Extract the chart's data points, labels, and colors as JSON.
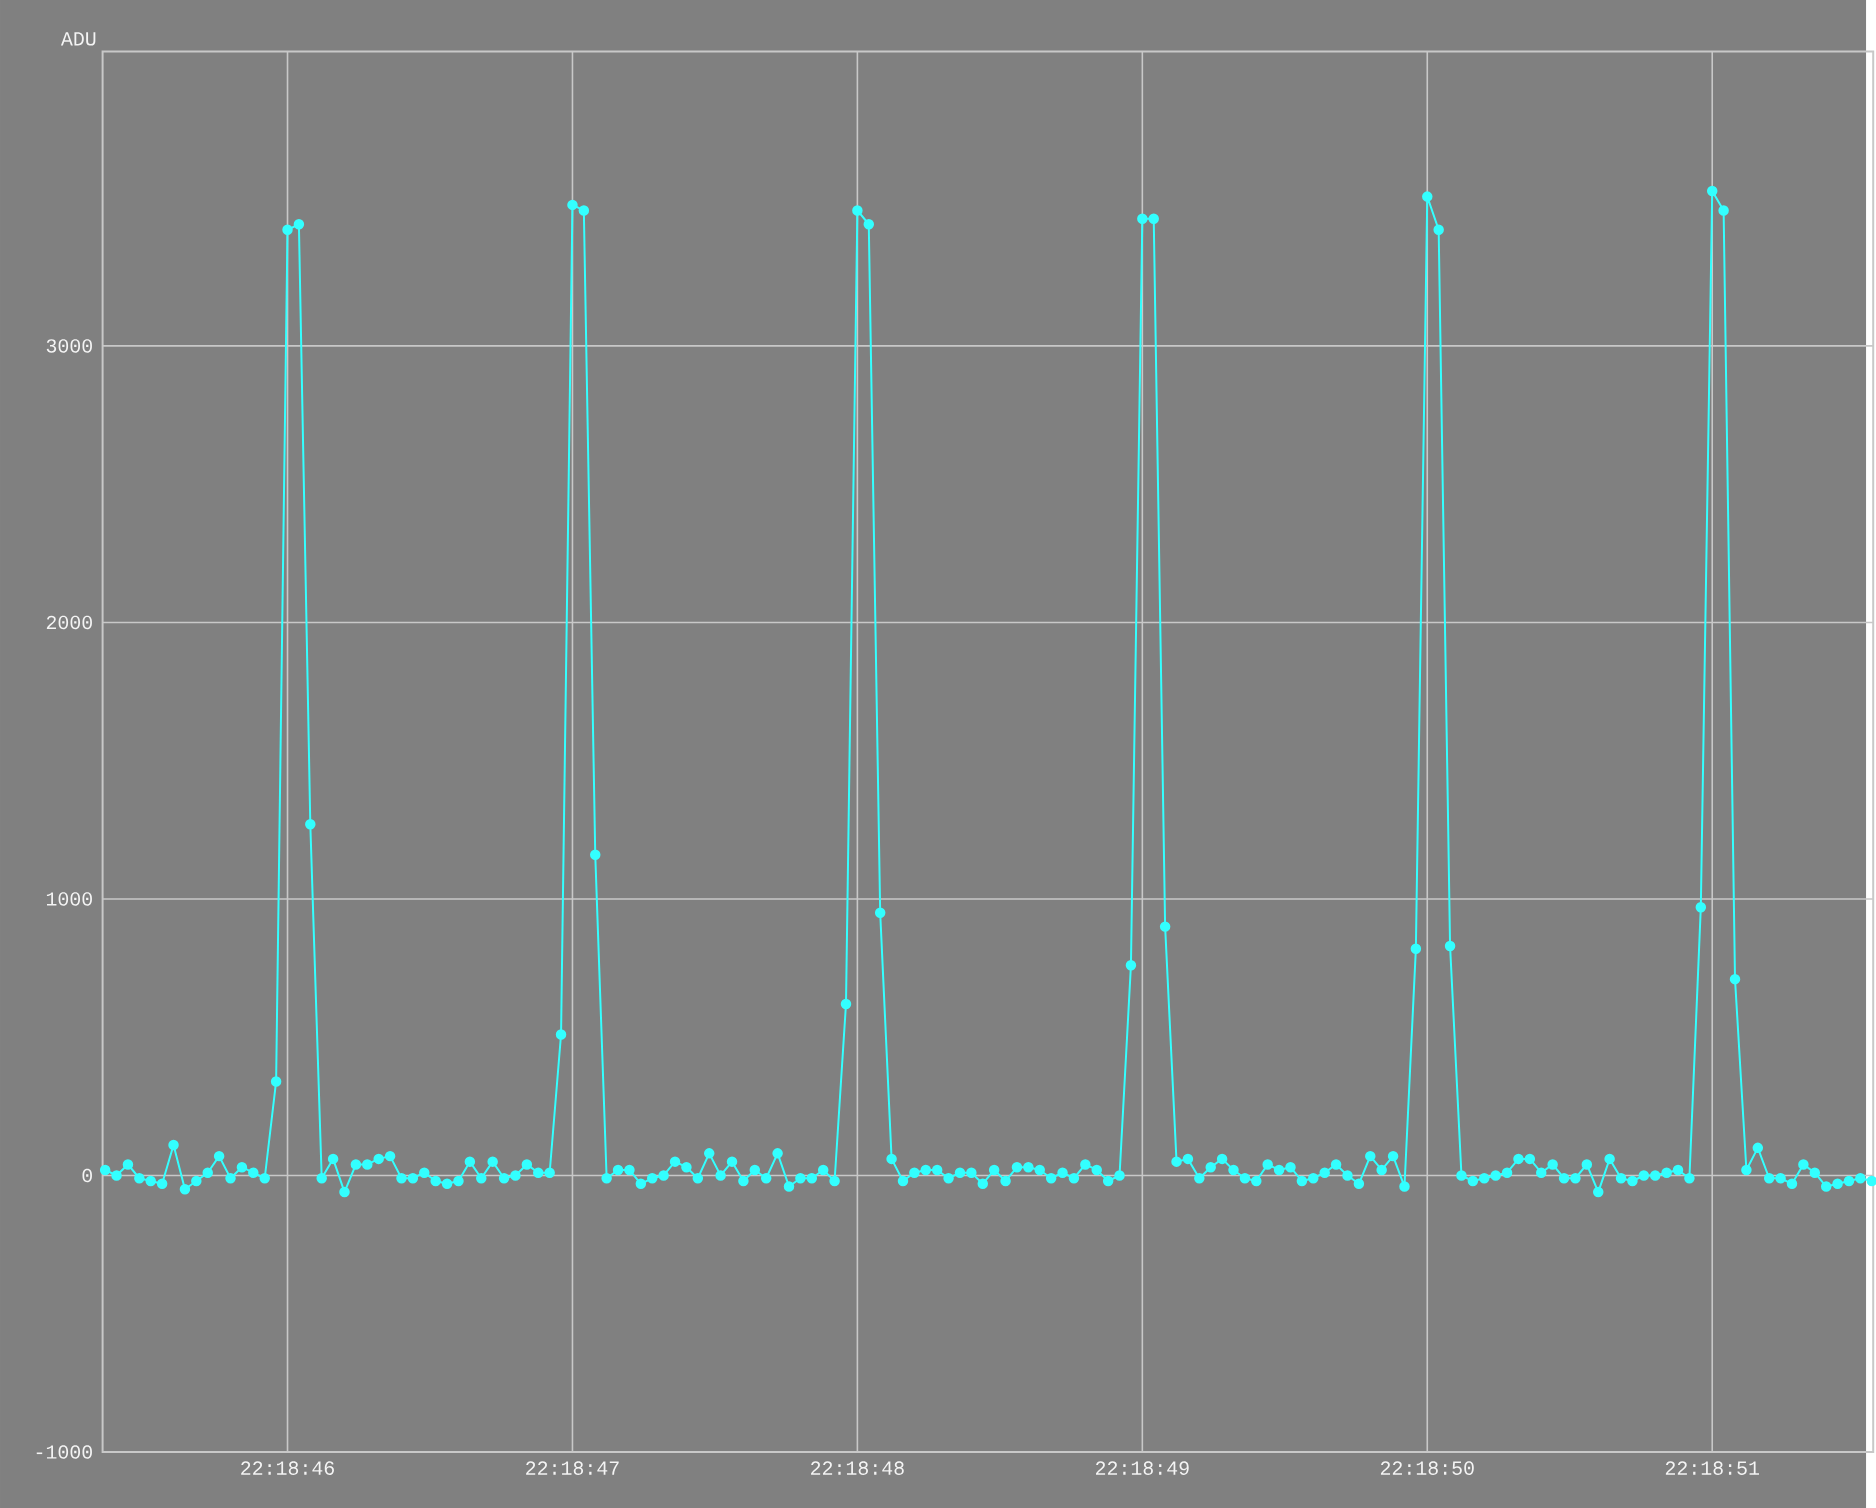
{
  "chart_data": {
    "type": "line",
    "ylabel": "ADU",
    "x": [
      22.3126,
      22.31261111,
      22.31262222,
      22.31263333,
      22.31264444,
      22.31265556,
      22.31266667,
      22.31267778,
      22.31268889,
      22.3127,
      22.31271111,
      22.31272222,
      22.31273333,
      22.31274444,
      22.31275556,
      22.31276667,
      22.31277778,
      22.31278889,
      22.3128,
      22.31281111,
      22.31282222,
      22.31283333,
      22.31284444,
      22.31285556,
      22.31286667,
      22.31287778,
      22.31288889,
      22.3129,
      22.31291111,
      22.31292222,
      22.31293333,
      22.31294444,
      22.31295556,
      22.31296667,
      22.31297778,
      22.31298889,
      22.313,
      22.31301111,
      22.31302222,
      22.31303333,
      22.31304444,
      22.31305556,
      22.31306667,
      22.31307778,
      22.31308889,
      22.3131,
      22.31311111,
      22.31312222,
      22.31313333,
      22.31314444,
      22.31315556,
      22.31316667,
      22.31317778,
      22.31318889,
      22.3132,
      22.31321111,
      22.31322222,
      22.31323333,
      22.31324444,
      22.31325556,
      22.31326667,
      22.31327778,
      22.31328889,
      22.3133,
      22.31331111,
      22.31332222,
      22.31333333,
      22.31334444,
      22.31335556,
      22.31336667,
      22.31337778,
      22.31338889,
      22.3134,
      22.31341111,
      22.31342222,
      22.31343333,
      22.31344444,
      22.31345556,
      22.31346667,
      22.31347778,
      22.31348889,
      22.3135,
      22.31351111,
      22.31352222,
      22.31353333,
      22.31354444,
      22.31355556,
      22.31356667,
      22.31357778,
      22.31358889,
      22.3136,
      22.31361111,
      22.31362222,
      22.31363333,
      22.31364444,
      22.31365556,
      22.31366667,
      22.31367778,
      22.31368889,
      22.3137,
      22.31371111,
      22.31372222,
      22.31373333,
      22.31374444,
      22.31375556,
      22.31376667,
      22.31377778,
      22.31378889,
      22.3138,
      22.31381111,
      22.31382222,
      22.31383333,
      22.31384444,
      22.31385556,
      22.31386667,
      22.31387778,
      22.31388889,
      22.3139,
      22.31391111,
      22.31392222,
      22.31393333,
      22.31394444,
      22.31395556,
      22.31396667,
      22.31397778,
      22.31398889,
      22.314,
      22.31401111,
      22.31402222,
      22.31403333,
      22.31404444,
      22.31405556,
      22.31406667,
      22.31407778,
      22.31408889,
      22.3141,
      22.31411111,
      22.31412222,
      22.31413333,
      22.31414444,
      22.31415556,
      22.31416667,
      22.31417778,
      22.31418889,
      22.3142,
      22.31421111,
      22.31422222,
      22.31423333,
      22.31424444,
      22.31425556,
      22.31426667,
      22.31427778,
      22.31428889,
      22.3143,
      22.31431111,
      22.31432222
    ],
    "series": [
      {
        "color": "#33ffff",
        "values": [
          20,
          0,
          40,
          -10,
          -20,
          -30,
          110,
          -50,
          -20,
          10,
          70,
          -10,
          30,
          10,
          -10,
          340,
          3420,
          3440,
          1270,
          -10,
          60,
          -60,
          40,
          40,
          60,
          70,
          -10,
          -10,
          10,
          -20,
          -30,
          -20,
          50,
          -10,
          50,
          -10,
          0,
          40,
          10,
          10,
          510,
          3510,
          3490,
          1160,
          -10,
          20,
          20,
          -30,
          -10,
          0,
          50,
          30,
          -10,
          80,
          0,
          50,
          -20,
          20,
          -10,
          80,
          -40,
          -10,
          -10,
          20,
          -20,
          620,
          3490,
          3440,
          950,
          60,
          -20,
          10,
          20,
          20,
          -10,
          10,
          10,
          -30,
          20,
          -20,
          30,
          30,
          20,
          -10,
          10,
          -10,
          40,
          20,
          -20,
          0,
          760,
          3460,
          3460,
          900,
          50,
          60,
          -10,
          30,
          60,
          20,
          -10,
          -20,
          40,
          20,
          30,
          -20,
          -10,
          10,
          40,
          0,
          -30,
          70,
          20,
          70,
          -40,
          820,
          3540,
          3420,
          830,
          0,
          -20,
          -10,
          0,
          10,
          60,
          60,
          10,
          40,
          -10,
          -10,
          40,
          -60,
          60,
          -10,
          -20,
          0,
          0,
          10,
          20,
          -10,
          970,
          3560,
          3490,
          710,
          20,
          100,
          -10,
          -10,
          -30,
          40,
          10,
          -40,
          -30,
          -20,
          -10,
          -20
        ]
      }
    ],
    "xlim": [
      22.3125975,
      22.31432361
    ],
    "xticks": [
      {
        "value": 22.31277778,
        "label": "22:18:46"
      },
      {
        "value": 22.31305556,
        "label": "22:18:47"
      },
      {
        "value": 22.31333333,
        "label": "22:18:48"
      },
      {
        "value": 22.31361111,
        "label": "22:18:49"
      },
      {
        "value": 22.31388889,
        "label": "22:18:50"
      },
      {
        "value": 22.31416667,
        "label": "22:18:51"
      }
    ],
    "ylim": [
      -1000,
      4065
    ],
    "yticks": [
      -1000,
      0,
      1000,
      2000,
      3000
    ],
    "grid": true,
    "marker": "circle",
    "line_style": "solid"
  }
}
